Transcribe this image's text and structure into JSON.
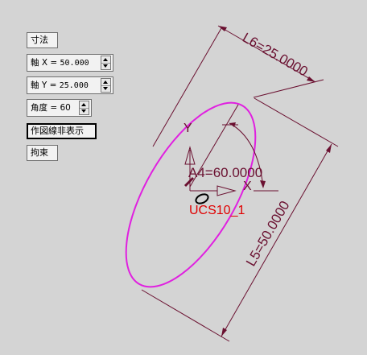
{
  "panel": {
    "dimension_button": "寸法",
    "axis_x": {
      "label": "軸 X  =",
      "value": "50.000"
    },
    "axis_y": {
      "label": "軸 Y  =",
      "value": "25.000"
    },
    "angle": {
      "label": "角度 = 60",
      "value": ""
    },
    "hide_construction_button": "作図線非表示",
    "constraint_button": "拘束"
  },
  "canvas": {
    "dim_l6": "L6=25.0000",
    "dim_l5": "L5=50.0000",
    "dim_a4": "A4=60.0000",
    "axis_x_label": "X",
    "axis_y_label": "Y",
    "ucs_label": "UCS10_1",
    "colors": {
      "ellipse": "#e020e0",
      "dimension": "#6a1030",
      "ucs": "#e00000"
    }
  }
}
